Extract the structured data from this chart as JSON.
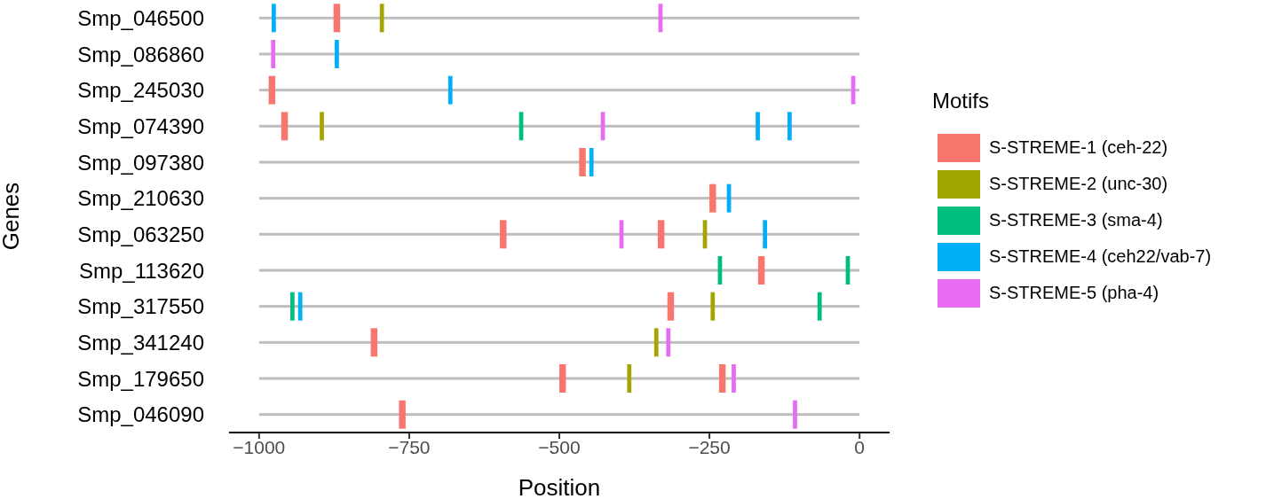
{
  "chart_data": {
    "type": "bar",
    "orientation": "horizontal",
    "xlabel": "Position",
    "ylabel": "Genes",
    "legend_title": "Motifs",
    "legend": "right",
    "grid": false,
    "categories": [
      "Smp_046500",
      "Smp_086860",
      "Smp_245030",
      "Smp_074390",
      "Smp_097380",
      "Smp_210630",
      "Smp_063250",
      "Smp_113620",
      "Smp_317550",
      "Smp_341240",
      "Smp_179650",
      "Smp_046090"
    ],
    "xlim": [
      -1050,
      50
    ],
    "xticks": [
      -1000,
      -750,
      -500,
      -250,
      0
    ],
    "series": [
      {
        "color": "#bebebe",
        "base": [
          -1000,
          -1000,
          -1000,
          -1000,
          -1000,
          -1000,
          -1000,
          -1000,
          -1000,
          -1000,
          -1000,
          -1000
        ],
        "values": [
          1000,
          1000,
          1000,
          1000,
          1000,
          1000,
          1000,
          1000,
          1000,
          1000,
          1000,
          1000
        ]
      },
      {
        "name": "S-STREME-1 (ceh-22)",
        "color": "#f8766d",
        "base": [
          -876,
          null,
          -984,
          -963,
          -467,
          -250,
          -599,
          -169,
          -320,
          -814,
          -500,
          -767
        ],
        "values": [
          11,
          null,
          11,
          11,
          11,
          11,
          11,
          11,
          11,
          11,
          11,
          11
        ]
      },
      {
        "color": "#f8766d",
        "base": [
          null,
          null,
          null,
          null,
          null,
          null,
          -336,
          null,
          null,
          null,
          -234,
          null
        ],
        "values": [
          null,
          null,
          null,
          null,
          null,
          null,
          11,
          null,
          null,
          null,
          11,
          null
        ]
      },
      {
        "name": "S-STREME-2 (unc-30)",
        "color": "#a3a500",
        "base": [
          -799,
          null,
          null,
          -899,
          null,
          null,
          -261,
          null,
          -248,
          -342,
          -387,
          null
        ],
        "values": [
          7,
          null,
          null,
          7,
          null,
          null,
          7,
          null,
          7,
          7,
          7,
          null
        ]
      },
      {
        "name": "S-STREME-3 (sma-4)",
        "color": "#00bf7d",
        "base": [
          null,
          null,
          null,
          -567,
          null,
          null,
          null,
          -236,
          -948,
          null,
          null,
          null
        ],
        "values": [
          null,
          null,
          null,
          7,
          null,
          null,
          null,
          7,
          7,
          null,
          null,
          null
        ]
      },
      {
        "color": "#00bf7d",
        "base": [
          null,
          null,
          null,
          null,
          null,
          null,
          null,
          -23,
          -70,
          null,
          null,
          null
        ],
        "values": [
          null,
          null,
          null,
          null,
          null,
          null,
          null,
          7,
          7,
          null,
          null,
          null
        ]
      },
      {
        "name": "S-STREME-4 (ceh22/vab-7)",
        "color": "#00b0f6",
        "base": [
          -979,
          -874,
          -685,
          -173,
          -450,
          -221,
          -161,
          null,
          -935,
          null,
          null,
          null
        ],
        "values": [
          7,
          7,
          7,
          7,
          7,
          7,
          7,
          null,
          7,
          null,
          null,
          null
        ]
      },
      {
        "color": "#00b0f6",
        "base": [
          null,
          null,
          null,
          -120,
          null,
          null,
          null,
          null,
          null,
          null,
          null,
          null
        ],
        "values": [
          null,
          null,
          null,
          7,
          null,
          null,
          null,
          null,
          null,
          null,
          null,
          null
        ]
      },
      {
        "name": "S-STREME-5 (pha-4)",
        "color": "#e76bf3",
        "base": [
          -335,
          -980,
          -14,
          -431,
          null,
          null,
          -400,
          null,
          null,
          -322,
          -213,
          -111
        ],
        "values": [
          7,
          7,
          7,
          7,
          null,
          null,
          7,
          null,
          null,
          7,
          7,
          7
        ]
      }
    ]
  }
}
